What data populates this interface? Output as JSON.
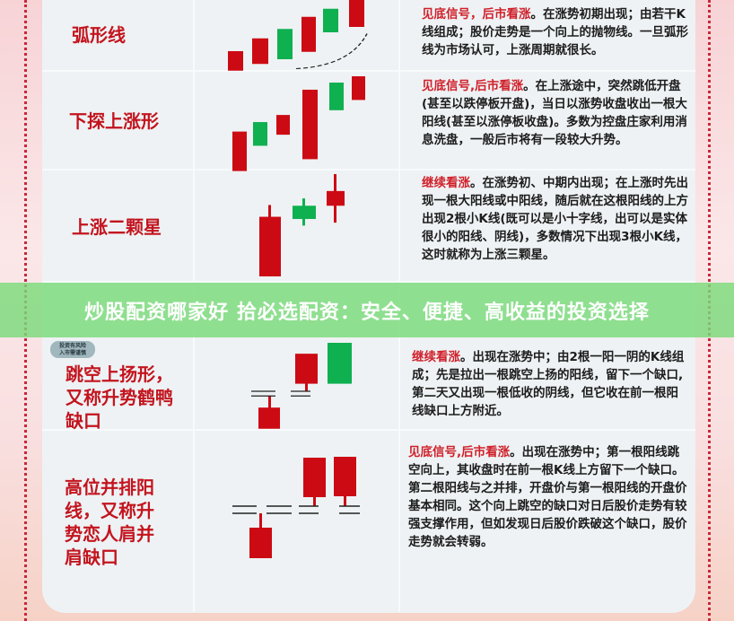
{
  "banner": {
    "text": "炒股配资哪家好 拾必选配资：安全、便捷、高收益的投资选择"
  },
  "badge": {
    "line1": "投资有风险",
    "line2": "入市需谨慎"
  },
  "colors": {
    "bullish": "#cc0a14",
    "bearish": "#0fb050",
    "title": "#c3141e",
    "banner": "#7ada7a"
  },
  "patterns": [
    {
      "name": "弧形线",
      "signal": "见底信号，后市看涨",
      "text": "。在涨势初期出现；由若干K线组成；股价走势是一个向上的抛物线。一旦弧形线为市场认可，上涨周期就很长。"
    },
    {
      "name": "下探上涨形",
      "signal": "见底信号,后市看涨",
      "text": "。在上涨途中，突然跳低开盘(甚至以跌停板开盘)，当日以涨势收盘收出一根大阳线(甚至以涨停板收盘)。多数为控盘庄家利用消息洗盘，一般后市将有一段较大升势。"
    },
    {
      "name": "上涨二颗星",
      "signal": "继续看涨",
      "text": "。在涨势初、中期内出现；在上涨时先出现一根大阳线或中阳线，随后就在这根阳线的上方出现2根小K线(既可以是小十字线，出可以是实体很小的阳线、阴线)，多数情况下出现3根小K线，这时就称为上涨三颗星。"
    },
    {
      "name": "跳空上扬形，又称升势鹤鸭缺口",
      "signal": "继续看涨",
      "text": "。出现在涨势中；由2根一阳一阴的K线组成；先是拉出一根跳空上扬的阳线，留下一个缺口,第二天又出现一根低收的阴线，但它收在前一根阳线缺口上方附近。"
    },
    {
      "name": "高位并排阳线，又称升势恋人肩并肩缺口",
      "signal": "见底信号,后市看涨",
      "text": "。出现在涨势中；第一根阳线跳空向上，其收盘时在前一根K线上方留下一个缺口。第二根阳线与之并排，开盘价与第一根阳线的开盘价基本相同。这个向上跳空的缺口对日后股价走势有较强支撑作用，但如发现日后股价跌破这个缺口，股价走势就会转弱。"
    }
  ]
}
